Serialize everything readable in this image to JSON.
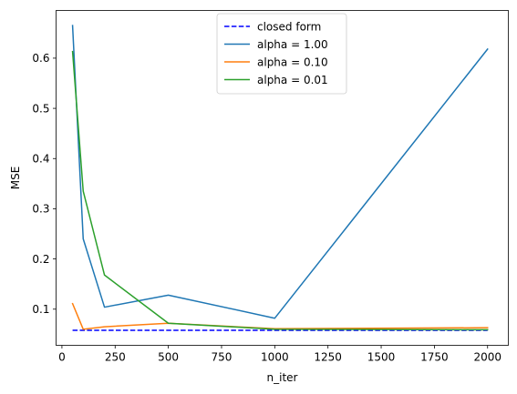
{
  "chart_data": {
    "type": "line",
    "title": "",
    "xlabel": "n_iter",
    "ylabel": "MSE",
    "xlim": [
      -27.5,
      2097.5
    ],
    "ylim": [
      0.028,
      0.695
    ],
    "xticks": [
      0,
      250,
      500,
      750,
      1000,
      1250,
      1500,
      1750,
      2000
    ],
    "yticks": [
      0.1,
      0.2,
      0.3,
      0.4,
      0.5,
      0.6
    ],
    "grid": false,
    "legend_position": "upper center",
    "series": [
      {
        "name": "closed form",
        "color": "#0000ff",
        "dash": "dashed",
        "x": [
          50,
          2000
        ],
        "y": [
          0.058,
          0.058
        ]
      },
      {
        "name": "alpha = 1.00",
        "color": "#1f77b4",
        "dash": "solid",
        "x": [
          50,
          100,
          200,
          500,
          1000,
          2000
        ],
        "y": [
          0.665,
          0.24,
          0.104,
          0.128,
          0.082,
          0.618
        ]
      },
      {
        "name": "alpha = 0.10",
        "color": "#ff7f0e",
        "dash": "solid",
        "x": [
          50,
          100,
          200,
          500,
          1000,
          2000
        ],
        "y": [
          0.111,
          0.06,
          0.065,
          0.072,
          0.061,
          0.063
        ]
      },
      {
        "name": "alpha = 0.01",
        "color": "#2ca02c",
        "dash": "solid",
        "x": [
          50,
          100,
          200,
          500,
          1000,
          2000
        ],
        "y": [
          0.613,
          0.335,
          0.168,
          0.072,
          0.06,
          0.059
        ]
      }
    ]
  }
}
